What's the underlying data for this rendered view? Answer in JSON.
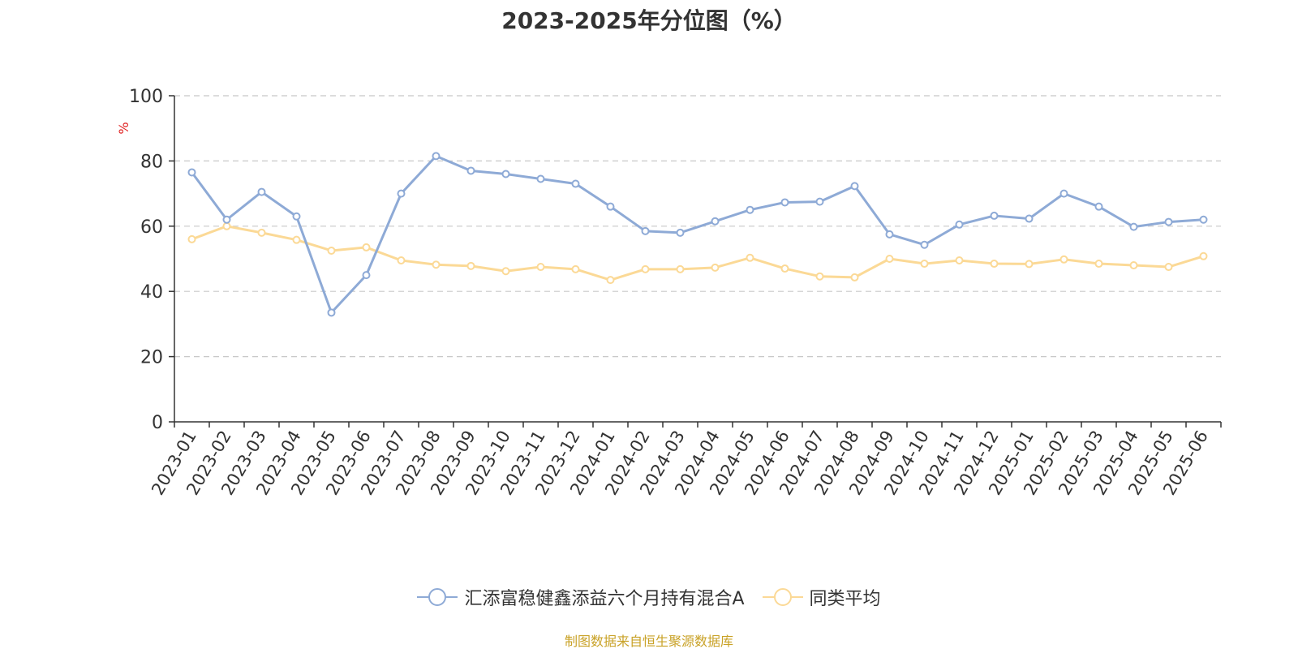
{
  "title": "2023-2025年分位图（%）",
  "source_note": "制图数据来自恒生聚源数据库",
  "colors": {
    "fund": "#8eaad6",
    "peer_avg": "#fbd996",
    "axis": "#333333",
    "grid": "#c8c8c8",
    "unit": "#e02020"
  },
  "chart_data": {
    "type": "line",
    "title": "2023-2025年分位图（%）",
    "xlabel": "",
    "ylabel": "%",
    "ylim": [
      0,
      100
    ],
    "yticks": [
      0,
      20,
      40,
      60,
      80,
      100
    ],
    "grid": true,
    "legend_position": "bottom",
    "categories": [
      "2023-01",
      "2023-02",
      "2023-03",
      "2023-04",
      "2023-05",
      "2023-06",
      "2023-07",
      "2023-08",
      "2023-09",
      "2023-10",
      "2023-11",
      "2023-12",
      "2024-01",
      "2024-02",
      "2024-03",
      "2024-04",
      "2024-05",
      "2024-06",
      "2024-07",
      "2024-08",
      "2024-09",
      "2024-10",
      "2024-11",
      "2024-12",
      "2025-01",
      "2025-02",
      "2025-03",
      "2025-04",
      "2025-05",
      "2025-06"
    ],
    "series": [
      {
        "name": "汇添富稳健鑫添益六个月持有混合A",
        "color_key": "fund",
        "values": [
          76.5,
          62.0,
          70.5,
          63.0,
          33.5,
          45.0,
          70.0,
          81.5,
          77.0,
          76.0,
          74.5,
          73.0,
          66.0,
          58.5,
          58.0,
          61.5,
          65.0,
          67.3,
          67.5,
          72.3,
          57.5,
          54.3,
          60.5,
          63.2,
          62.3,
          70.0,
          66.0,
          59.8,
          61.3,
          62.0
        ]
      },
      {
        "name": "同类平均",
        "color_key": "peer_avg",
        "values": [
          56.0,
          60.0,
          58.0,
          55.8,
          52.5,
          53.5,
          49.5,
          48.2,
          47.8,
          46.2,
          47.5,
          46.8,
          43.5,
          46.8,
          46.8,
          47.3,
          50.3,
          47.0,
          44.6,
          44.3,
          50.0,
          48.5,
          49.5,
          48.5,
          48.4,
          49.8,
          48.5,
          48.0,
          47.5,
          50.8
        ]
      }
    ]
  }
}
